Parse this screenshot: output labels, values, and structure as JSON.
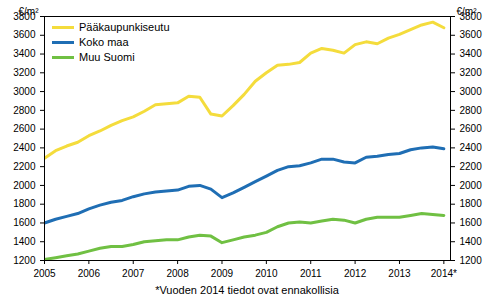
{
  "chart_data": {
    "type": "line",
    "ylabel": "€/m²",
    "caption": "*Vuoden 2014 tiedot ovat ennakollisia",
    "legend": "upper left",
    "grid": false,
    "x": [
      2005,
      2005.25,
      2005.5,
      2005.75,
      2006,
      2006.25,
      2006.5,
      2006.75,
      2007,
      2007.25,
      2007.5,
      2007.75,
      2008,
      2008.25,
      2008.5,
      2008.75,
      2009,
      2009.25,
      2009.5,
      2009.75,
      2010,
      2010.25,
      2010.5,
      2010.75,
      2011,
      2011.25,
      2011.5,
      2011.75,
      2012,
      2012.25,
      2012.5,
      2012.75,
      2013,
      2013.25,
      2013.5,
      2013.75,
      2014
    ],
    "xlim": [
      2005,
      2014.15
    ],
    "xticks": [
      2005,
      2006,
      2007,
      2008,
      2009,
      2010,
      2011,
      2012,
      2013,
      {
        "value": 2014,
        "label": "2014*"
      }
    ],
    "ylim": [
      1200,
      3800
    ],
    "yticks": [
      1200,
      1400,
      1600,
      1800,
      2000,
      2200,
      2400,
      2600,
      2800,
      3000,
      3200,
      3400,
      3600,
      3800
    ],
    "series": [
      {
        "name": "Pääkaupunkiseutu",
        "color": "#f4dc3c",
        "values": [
          2290,
          2370,
          2420,
          2460,
          2530,
          2580,
          2640,
          2690,
          2730,
          2790,
          2860,
          2870,
          2880,
          2950,
          2940,
          2760,
          2740,
          2850,
          2970,
          3110,
          3200,
          3280,
          3290,
          3310,
          3410,
          3460,
          3440,
          3410,
          3500,
          3530,
          3510,
          3570,
          3610,
          3660,
          3710,
          3740,
          3680
        ]
      },
      {
        "name": "Koko maa",
        "color": "#1f6eb4",
        "values": [
          1600,
          1640,
          1670,
          1700,
          1750,
          1790,
          1820,
          1840,
          1880,
          1910,
          1930,
          1940,
          1950,
          1990,
          2000,
          1960,
          1870,
          1920,
          1980,
          2040,
          2100,
          2160,
          2200,
          2210,
          2240,
          2280,
          2280,
          2250,
          2240,
          2300,
          2310,
          2330,
          2340,
          2380,
          2400,
          2410,
          2390
        ]
      },
      {
        "name": "Muu Suomi",
        "color": "#70c043",
        "values": [
          1210,
          1230,
          1250,
          1270,
          1300,
          1330,
          1350,
          1350,
          1370,
          1400,
          1410,
          1420,
          1420,
          1450,
          1470,
          1460,
          1390,
          1420,
          1450,
          1470,
          1500,
          1560,
          1600,
          1610,
          1600,
          1620,
          1640,
          1630,
          1600,
          1640,
          1660,
          1660,
          1660,
          1680,
          1700,
          1690,
          1680
        ]
      }
    ]
  }
}
